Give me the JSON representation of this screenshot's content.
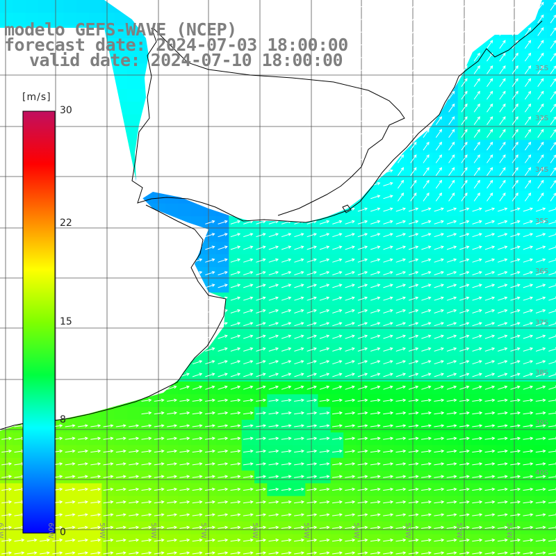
{
  "header": {
    "model": "modelo GEFS-WAVE (NCEP)",
    "forecast": "forecast date: 2024-07-03 18:00:00",
    "valid": "valid date: 2024-07-10 18:00:00"
  },
  "colorbar": {
    "unit": "[m/s]",
    "ticks": [
      {
        "label": "30",
        "value": 30
      },
      {
        "label": "22",
        "value": 22
      },
      {
        "label": "15",
        "value": 15
      },
      {
        "label": "8",
        "value": 8
      },
      {
        "label": "0",
        "value": 0
      }
    ],
    "range": [
      0,
      30
    ],
    "colors": [
      "#0000ff",
      "#0080ff",
      "#00ffff",
      "#00ff40",
      "#80ff00",
      "#ffff00",
      "#ff8000",
      "#ff0000",
      "#c01060"
    ]
  },
  "grid": {
    "lat_labels": [
      "32S",
      "33S",
      "34S",
      "35S",
      "36S",
      "37S",
      "38S",
      "39S",
      "40S"
    ],
    "lon_labels": [
      "61W",
      "60W",
      "59W",
      "58W",
      "57W",
      "56W",
      "55W",
      "54W",
      "53W",
      "52W",
      "51W"
    ]
  },
  "map_colors": {
    "land": "#ffffff",
    "coast": "#000000",
    "grid": "#555555",
    "arrow": "#ffffff"
  }
}
